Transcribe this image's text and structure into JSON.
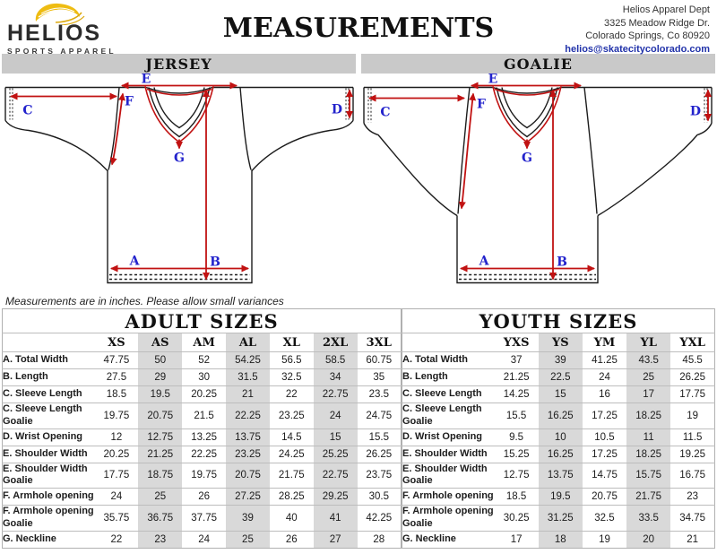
{
  "header": {
    "logo": {
      "name": "HELIOS",
      "tagline": "SPORTS APPAREL",
      "sun_color": "#eebc12"
    },
    "title": "MEASUREMENTS",
    "address": {
      "line1": "Helios Apparel Dept",
      "line2": "3325 Meadow Ridge Dr.",
      "line3": "Colorado Springs, Co 80920",
      "email": "helios@skatecitycolorado.com"
    }
  },
  "diagrams": {
    "jersey_title": "JERSEY",
    "goalie_title": "GOALIE",
    "arrow_color": "#c11212",
    "label_color": "#2323cc",
    "labels": {
      "a": "A",
      "b": "B",
      "c": "C",
      "d": "D",
      "e": "E",
      "f": "F",
      "g": "G"
    }
  },
  "note": "Measurements are in inches. Please allow small variances",
  "adult_table": {
    "title": "ADULT SIZES",
    "columns": [
      "XS",
      "AS",
      "AM",
      "AL",
      "XL",
      "2XL",
      "3XL"
    ],
    "rows": [
      {
        "label": "A. Total Width",
        "values": [
          "47.75",
          "50",
          "52",
          "54.25",
          "56.5",
          "58.5",
          "60.75"
        ]
      },
      {
        "label": "B. Length",
        "values": [
          "27.5",
          "29",
          "30",
          "31.5",
          "32.5",
          "34",
          "35"
        ]
      },
      {
        "label": "C. Sleeve Length",
        "values": [
          "18.5",
          "19.5",
          "20.25",
          "21",
          "22",
          "22.75",
          "23.5"
        ]
      },
      {
        "label": "C. Sleeve Length Goalie",
        "values": [
          "19.75",
          "20.75",
          "21.5",
          "22.25",
          "23.25",
          "24",
          "24.75"
        ]
      },
      {
        "label": "D. Wrist Opening",
        "values": [
          "12",
          "12.75",
          "13.25",
          "13.75",
          "14.5",
          "15",
          "15.5"
        ]
      },
      {
        "label": "E. Shoulder Width",
        "values": [
          "20.25",
          "21.25",
          "22.25",
          "23.25",
          "24.25",
          "25.25",
          "26.25"
        ]
      },
      {
        "label": "E. Shoulder Width Goalie",
        "values": [
          "17.75",
          "18.75",
          "19.75",
          "20.75",
          "21.75",
          "22.75",
          "23.75"
        ]
      },
      {
        "label": "F. Armhole opening",
        "values": [
          "24",
          "25",
          "26",
          "27.25",
          "28.25",
          "29.25",
          "30.5"
        ]
      },
      {
        "label": "F. Armhole opening Goalie",
        "values": [
          "35.75",
          "36.75",
          "37.75",
          "39",
          "40",
          "41",
          "42.25"
        ]
      },
      {
        "label": "G. Neckline",
        "values": [
          "22",
          "23",
          "24",
          "25",
          "26",
          "27",
          "28"
        ]
      }
    ]
  },
  "youth_table": {
    "title": "YOUTH SIZES",
    "columns": [
      "YXS",
      "YS",
      "YM",
      "YL",
      "YXL"
    ],
    "rows": [
      {
        "label": "A. Total Width",
        "values": [
          "37",
          "39",
          "41.25",
          "43.5",
          "45.5"
        ]
      },
      {
        "label": "B. Length",
        "values": [
          "21.25",
          "22.5",
          "24",
          "25",
          "26.25"
        ]
      },
      {
        "label": "C. Sleeve Length",
        "values": [
          "14.25",
          "15",
          "16",
          "17",
          "17.75"
        ]
      },
      {
        "label": "C. Sleeve Length Goalie",
        "values": [
          "15.5",
          "16.25",
          "17.25",
          "18.25",
          "19"
        ]
      },
      {
        "label": "D. Wrist Opening",
        "values": [
          "9.5",
          "10",
          "10.5",
          "11",
          "11.5"
        ]
      },
      {
        "label": "E. Shoulder Width",
        "values": [
          "15.25",
          "16.25",
          "17.25",
          "18.25",
          "19.25"
        ]
      },
      {
        "label": "E. Shoulder Width Goalie",
        "values": [
          "12.75",
          "13.75",
          "14.75",
          "15.75",
          "16.75"
        ]
      },
      {
        "label": "F. Armhole opening",
        "values": [
          "18.5",
          "19.5",
          "20.75",
          "21.75",
          "23"
        ]
      },
      {
        "label": "F. Armhole opening Goalie",
        "values": [
          "30.25",
          "31.25",
          "32.5",
          "33.5",
          "34.75"
        ]
      },
      {
        "label": "G. Neckline",
        "values": [
          "17",
          "18",
          "19",
          "20",
          "21"
        ]
      }
    ]
  }
}
